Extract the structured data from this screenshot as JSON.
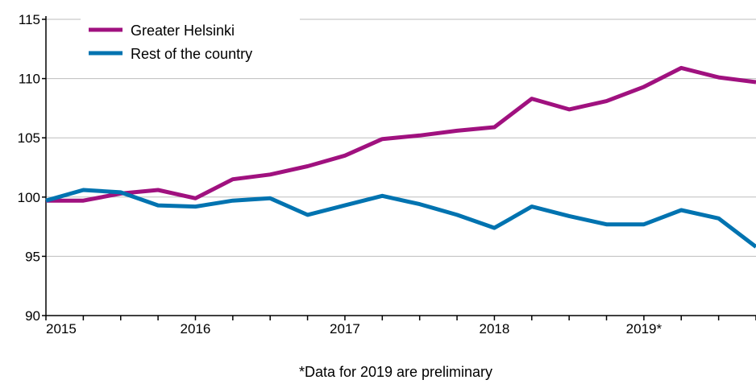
{
  "chart_data": {
    "type": "line",
    "title": "",
    "xlabel": "",
    "ylabel": "",
    "note": "*Data for 2019 are preliminary",
    "x_tick_labels": [
      "2015",
      "2016",
      "2017",
      "2018",
      "2019*"
    ],
    "y_ticks": [
      90,
      95,
      100,
      105,
      110,
      115
    ],
    "ylim": [
      90,
      115
    ],
    "grid": "horizontal",
    "legend": "top-left",
    "x": [
      "2015Q1",
      "2015Q2",
      "2015Q3",
      "2015Q4",
      "2016Q1",
      "2016Q2",
      "2016Q3",
      "2016Q4",
      "2017Q1",
      "2017Q2",
      "2017Q3",
      "2017Q4",
      "2018Q1",
      "2018Q2",
      "2018Q3",
      "2018Q4",
      "2019Q1",
      "2019Q2",
      "2019Q3",
      "2019Q4"
    ],
    "series": [
      {
        "name": "Greater Helsinki",
        "color": "#a0117f",
        "values": [
          99.7,
          99.7,
          100.3,
          100.6,
          99.9,
          101.5,
          101.9,
          102.6,
          103.5,
          104.9,
          105.2,
          105.6,
          105.9,
          108.3,
          107.4,
          108.1,
          109.3,
          110.9,
          110.1,
          109.7
        ]
      },
      {
        "name": "Rest of the country",
        "color": "#0073b0",
        "values": [
          99.7,
          100.6,
          100.4,
          99.3,
          99.2,
          99.7,
          99.9,
          98.5,
          99.3,
          100.1,
          99.4,
          98.5,
          97.4,
          99.2,
          98.4,
          97.7,
          97.7,
          98.9,
          98.2,
          95.8
        ]
      }
    ]
  }
}
